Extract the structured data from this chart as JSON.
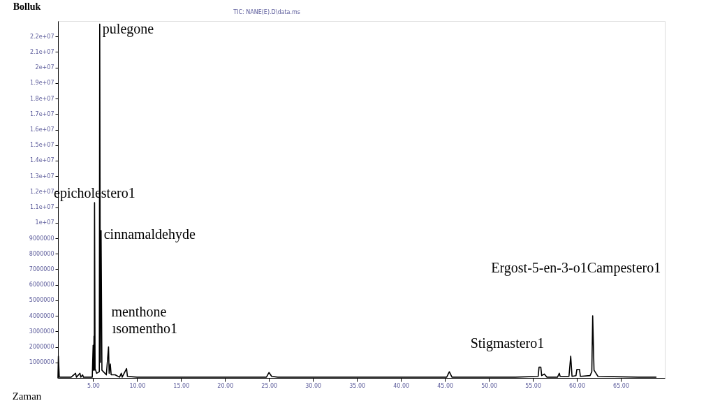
{
  "chart_data": {
    "type": "line",
    "title": "TIC: NANE(E).D\\data.ms",
    "xlabel": "Zaman",
    "ylabel": "Bolluk",
    "xlim": [
      1,
      70
    ],
    "ylim": [
      0,
      23000000
    ],
    "xticks": [
      {
        "value": 5,
        "label": "5.00"
      },
      {
        "value": 10,
        "label": "10.00"
      },
      {
        "value": 15,
        "label": "15.00"
      },
      {
        "value": 20,
        "label": "20.00"
      },
      {
        "value": 25,
        "label": "25.00"
      },
      {
        "value": 30,
        "label": "30.00"
      },
      {
        "value": 35,
        "label": "35.00"
      },
      {
        "value": 40,
        "label": "40.00"
      },
      {
        "value": 45,
        "label": "45.00"
      },
      {
        "value": 50,
        "label": "50.00"
      },
      {
        "value": 55,
        "label": "55.00"
      },
      {
        "value": 60,
        "label": "60.00"
      },
      {
        "value": 65,
        "label": "65.00"
      }
    ],
    "yticks": [
      1000000,
      2000000,
      3000000,
      4000000,
      5000000,
      6000000,
      7000000,
      8000000,
      9000000,
      {
        "value": 10000000,
        "label": "1e+07"
      },
      {
        "value": 11000000,
        "label": "1.1e+07"
      },
      {
        "value": 12000000,
        "label": "1.2e+07"
      },
      {
        "value": 13000000,
        "label": "1.3e+07"
      },
      {
        "value": 14000000,
        "label": "1.4e+07"
      },
      {
        "value": 15000000,
        "label": "1.5e+07"
      },
      {
        "value": 16000000,
        "label": "1.6e+07"
      },
      {
        "value": 17000000,
        "label": "1.7e+07"
      },
      {
        "value": 18000000,
        "label": "1.8e+07"
      },
      {
        "value": 19000000,
        "label": "1.9e+07"
      },
      {
        "value": 20000000,
        "label": "2e+07"
      },
      {
        "value": 21000000,
        "label": "2.1e+07"
      },
      {
        "value": 22000000,
        "label": "2.2e+07"
      }
    ],
    "grid": false,
    "series": [
      {
        "color": "#000000",
        "x": [
          1.0,
          1.05,
          1.15,
          2.5,
          3.0,
          3.1,
          3.5,
          3.6,
          3.8,
          3.9,
          4.9,
          5.0,
          5.05,
          5.1,
          5.13,
          5.16,
          5.22,
          5.4,
          5.7,
          5.75,
          5.82,
          5.9,
          6.0,
          6.5,
          6.75,
          6.82,
          6.95,
          7.05,
          7.5,
          8.0,
          8.2,
          8.3,
          8.8,
          8.9,
          10,
          13,
          24.7,
          25.0,
          25.3,
          26,
          45.2,
          45.5,
          45.8,
          53,
          55.6,
          55.7,
          55.9,
          56.0,
          56.3,
          56.6,
          57.8,
          58.0,
          58.1,
          59.1,
          59.3,
          59.45,
          59.9,
          60.0,
          60.3,
          60.4,
          61.5,
          61.7,
          61.8,
          61.95,
          62.4,
          67,
          69
        ],
        "values": [
          0,
          1400000,
          50000,
          50000,
          300000,
          50000,
          300000,
          50000,
          200000,
          50000,
          50000,
          2100000,
          500000,
          2700000,
          500000,
          11300000,
          600000,
          300000,
          400000,
          22800000,
          1000000,
          9500000,
          500000,
          200000,
          2000000,
          300000,
          900000,
          200000,
          200000,
          50000,
          300000,
          50000,
          600000,
          100000,
          50000,
          50000,
          50000,
          350000,
          100000,
          50000,
          50000,
          400000,
          50000,
          50000,
          100000,
          700000,
          700000,
          150000,
          250000,
          50000,
          50000,
          300000,
          100000,
          100000,
          1400000,
          100000,
          150000,
          550000,
          550000,
          100000,
          150000,
          400000,
          4000000,
          500000,
          100000,
          50000,
          50000
        ]
      }
    ],
    "annotations": [
      {
        "text": "pulegone",
        "x": 5.75,
        "y": 22800000
      },
      {
        "text": "epicholestero1",
        "x": 5.16,
        "y": 11300000
      },
      {
        "text": "cinnamaldehyde",
        "x": 5.9,
        "y": 9500000
      },
      {
        "text": "menthone",
        "x": 6.75,
        "y": 2000000
      },
      {
        "text": "ısomentho1",
        "x": 5.1,
        "y": 2700000
      },
      {
        "text": "Stigmastero1",
        "x": 59.3,
        "y": 1400000
      },
      {
        "text": "Ergost-5-en-3-o1Campestero1",
        "x": 61.8,
        "y": 4000000
      }
    ]
  }
}
